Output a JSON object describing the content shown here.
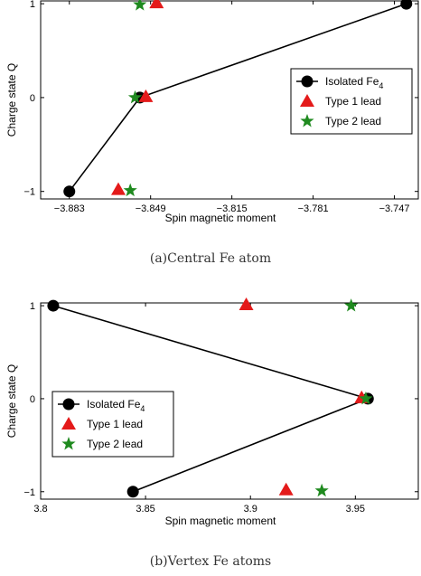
{
  "colors": {
    "isolated": "#000000",
    "type1": "#e41a1a",
    "type2": "#1f8a1f"
  },
  "chart_data": [
    {
      "type": "scatter",
      "caption": "(a)Central Fe atom",
      "xlabel": "Spin magnetic moment",
      "ylabel": "Charge state Q",
      "xlim": [
        -3.895,
        -3.737
      ],
      "ylim": [
        -1.08,
        1.03
      ],
      "xticks": [
        -3.883,
        -3.849,
        -3.815,
        -3.781,
        -3.747
      ],
      "xtick_labels": [
        "−3.883",
        "−3.849",
        "−3.815",
        "−3.781",
        "−3.747"
      ],
      "yticks": [
        -1,
        0,
        1
      ],
      "ytick_labels": [
        "−1",
        "0",
        "1"
      ],
      "legend_position": "right",
      "series": [
        {
          "name": "Isolated Fe",
          "name_sub": "4",
          "marker": "circle",
          "line": true,
          "x": [
            -3.883,
            -3.8535,
            -3.742
          ],
          "y": [
            -1,
            0,
            1
          ]
        },
        {
          "name": "Type 1 lead",
          "marker": "triangle",
          "line": false,
          "x": [
            -3.8625,
            -3.851,
            -3.8465
          ],
          "y": [
            -0.98,
            0.01,
            1.01
          ]
        },
        {
          "name": "Type 2 lead",
          "marker": "star",
          "line": false,
          "x": [
            -3.8575,
            -3.8555,
            -3.8535
          ],
          "y": [
            -0.99,
            0.0,
            0.99
          ]
        }
      ]
    },
    {
      "type": "scatter",
      "caption": "(b)Vertex Fe atoms",
      "xlabel": "Spin magnetic moment",
      "ylabel": "Charge state Q",
      "xlim": [
        3.8,
        3.98
      ],
      "ylim": [
        -1.08,
        1.03
      ],
      "xticks": [
        3.8,
        3.85,
        3.9,
        3.95
      ],
      "xtick_labels": [
        "3.8",
        "3.85",
        "3.9",
        "3.95"
      ],
      "yticks": [
        -1,
        0,
        1
      ],
      "ytick_labels": [
        "−1",
        "0",
        "1"
      ],
      "legend_position": "left",
      "series": [
        {
          "name": "Isolated Fe",
          "name_sub": "4",
          "marker": "circle",
          "line": true,
          "x": [
            3.806,
            3.956,
            3.844
          ],
          "y": [
            1,
            0,
            -1
          ]
        },
        {
          "name": "Type 1 lead",
          "marker": "triangle",
          "line": false,
          "x": [
            3.898,
            3.953,
            3.917
          ],
          "y": [
            1.01,
            0.01,
            -0.98
          ]
        },
        {
          "name": "Type 2 lead",
          "marker": "star",
          "line": false,
          "x": [
            3.948,
            3.955,
            3.934
          ],
          "y": [
            1.0,
            0.0,
            -0.99
          ]
        }
      ]
    }
  ]
}
